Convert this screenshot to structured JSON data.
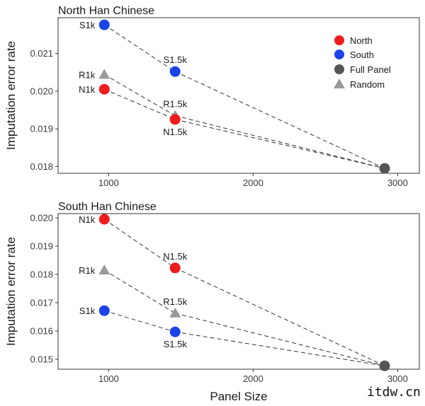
{
  "chart_data": [
    {
      "type": "scatter",
      "title": "North Han Chinese",
      "ylabel": "Imputation error rate",
      "xlabel": "",
      "xlim": [
        650,
        3150
      ],
      "ylim": [
        0.01782,
        0.02195
      ],
      "xticks": [
        "1000",
        "2000",
        "3000"
      ],
      "yticks": [
        "0.018",
        "0.019",
        "0.020",
        "0.021"
      ],
      "points": [
        {
          "id": "S1k",
          "label": "S1k",
          "group": "South",
          "x": 970,
          "y": 0.02176,
          "label_pos": "left"
        },
        {
          "id": "R1k",
          "label": "R1k",
          "group": "Random",
          "x": 970,
          "y": 0.02044,
          "label_pos": "left"
        },
        {
          "id": "N1k",
          "label": "N1k",
          "group": "North",
          "x": 970,
          "y": 0.02005,
          "label_pos": "left"
        },
        {
          "id": "S1.5k",
          "label": "S1.5k",
          "group": "South",
          "x": 1460,
          "y": 0.02052,
          "label_pos": "above"
        },
        {
          "id": "R1.5k",
          "label": "R1.5k",
          "group": "Random",
          "x": 1460,
          "y": 0.01935,
          "label_pos": "above"
        },
        {
          "id": "N1.5k",
          "label": "N1.5k",
          "group": "North",
          "x": 1460,
          "y": 0.01925,
          "label_pos": "below"
        },
        {
          "id": "Full",
          "label": "",
          "group": "Full Panel",
          "x": 2910,
          "y": 0.01795,
          "label_pos": "none"
        }
      ],
      "lines": [
        [
          "S1k",
          "S1.5k",
          "Full"
        ],
        [
          "R1k",
          "R1.5k",
          "Full"
        ],
        [
          "N1k",
          "N1.5k",
          "Full"
        ]
      ]
    },
    {
      "type": "scatter",
      "title": "South Han Chinese",
      "ylabel": "Imputation error rate",
      "xlabel": "Panel Size",
      "xlim": [
        650,
        3150
      ],
      "ylim": [
        0.01465,
        0.02015
      ],
      "xticks": [
        "1000",
        "2000",
        "3000"
      ],
      "yticks": [
        "0.015",
        "0.016",
        "0.017",
        "0.018",
        "0.019",
        "0.020"
      ],
      "points": [
        {
          "id": "N1k",
          "label": "N1k",
          "group": "North",
          "x": 970,
          "y": 0.01995,
          "label_pos": "left"
        },
        {
          "id": "R1k",
          "label": "R1k",
          "group": "Random",
          "x": 970,
          "y": 0.01815,
          "label_pos": "left"
        },
        {
          "id": "S1k",
          "label": "S1k",
          "group": "South",
          "x": 970,
          "y": 0.01672,
          "label_pos": "left"
        },
        {
          "id": "N1.5k",
          "label": "N1.5k",
          "group": "North",
          "x": 1460,
          "y": 0.01823,
          "label_pos": "above"
        },
        {
          "id": "R1.5k",
          "label": "R1.5k",
          "group": "Random",
          "x": 1460,
          "y": 0.01663,
          "label_pos": "above"
        },
        {
          "id": "S1.5k",
          "label": "S1.5k",
          "group": "South",
          "x": 1460,
          "y": 0.01597,
          "label_pos": "below"
        },
        {
          "id": "Full",
          "label": "",
          "group": "Full Panel",
          "x": 2910,
          "y": 0.01477,
          "label_pos": "none"
        }
      ],
      "lines": [
        [
          "N1k",
          "N1.5k",
          "Full"
        ],
        [
          "R1k",
          "R1.5k",
          "Full"
        ],
        [
          "S1k",
          "S1.5k",
          "Full"
        ]
      ]
    }
  ],
  "legend": {
    "placement": "top-right of first panel",
    "entries": [
      {
        "label": "North",
        "group": "North",
        "shape": "circle",
        "color": "#ee1c1c"
      },
      {
        "label": "South",
        "group": "South",
        "shape": "circle",
        "color": "#1a44e8"
      },
      {
        "label": "Full Panel",
        "group": "Full Panel",
        "shape": "circle",
        "color": "#555555"
      },
      {
        "label": "Random",
        "group": "Random",
        "shape": "triangle",
        "color": "#9a9a9a"
      }
    ]
  },
  "colors": {
    "North": "#ee1c1c",
    "South": "#1a44e8",
    "Full Panel": "#555555",
    "Random": "#9a9a9a"
  },
  "watermark": "itdw.cn"
}
